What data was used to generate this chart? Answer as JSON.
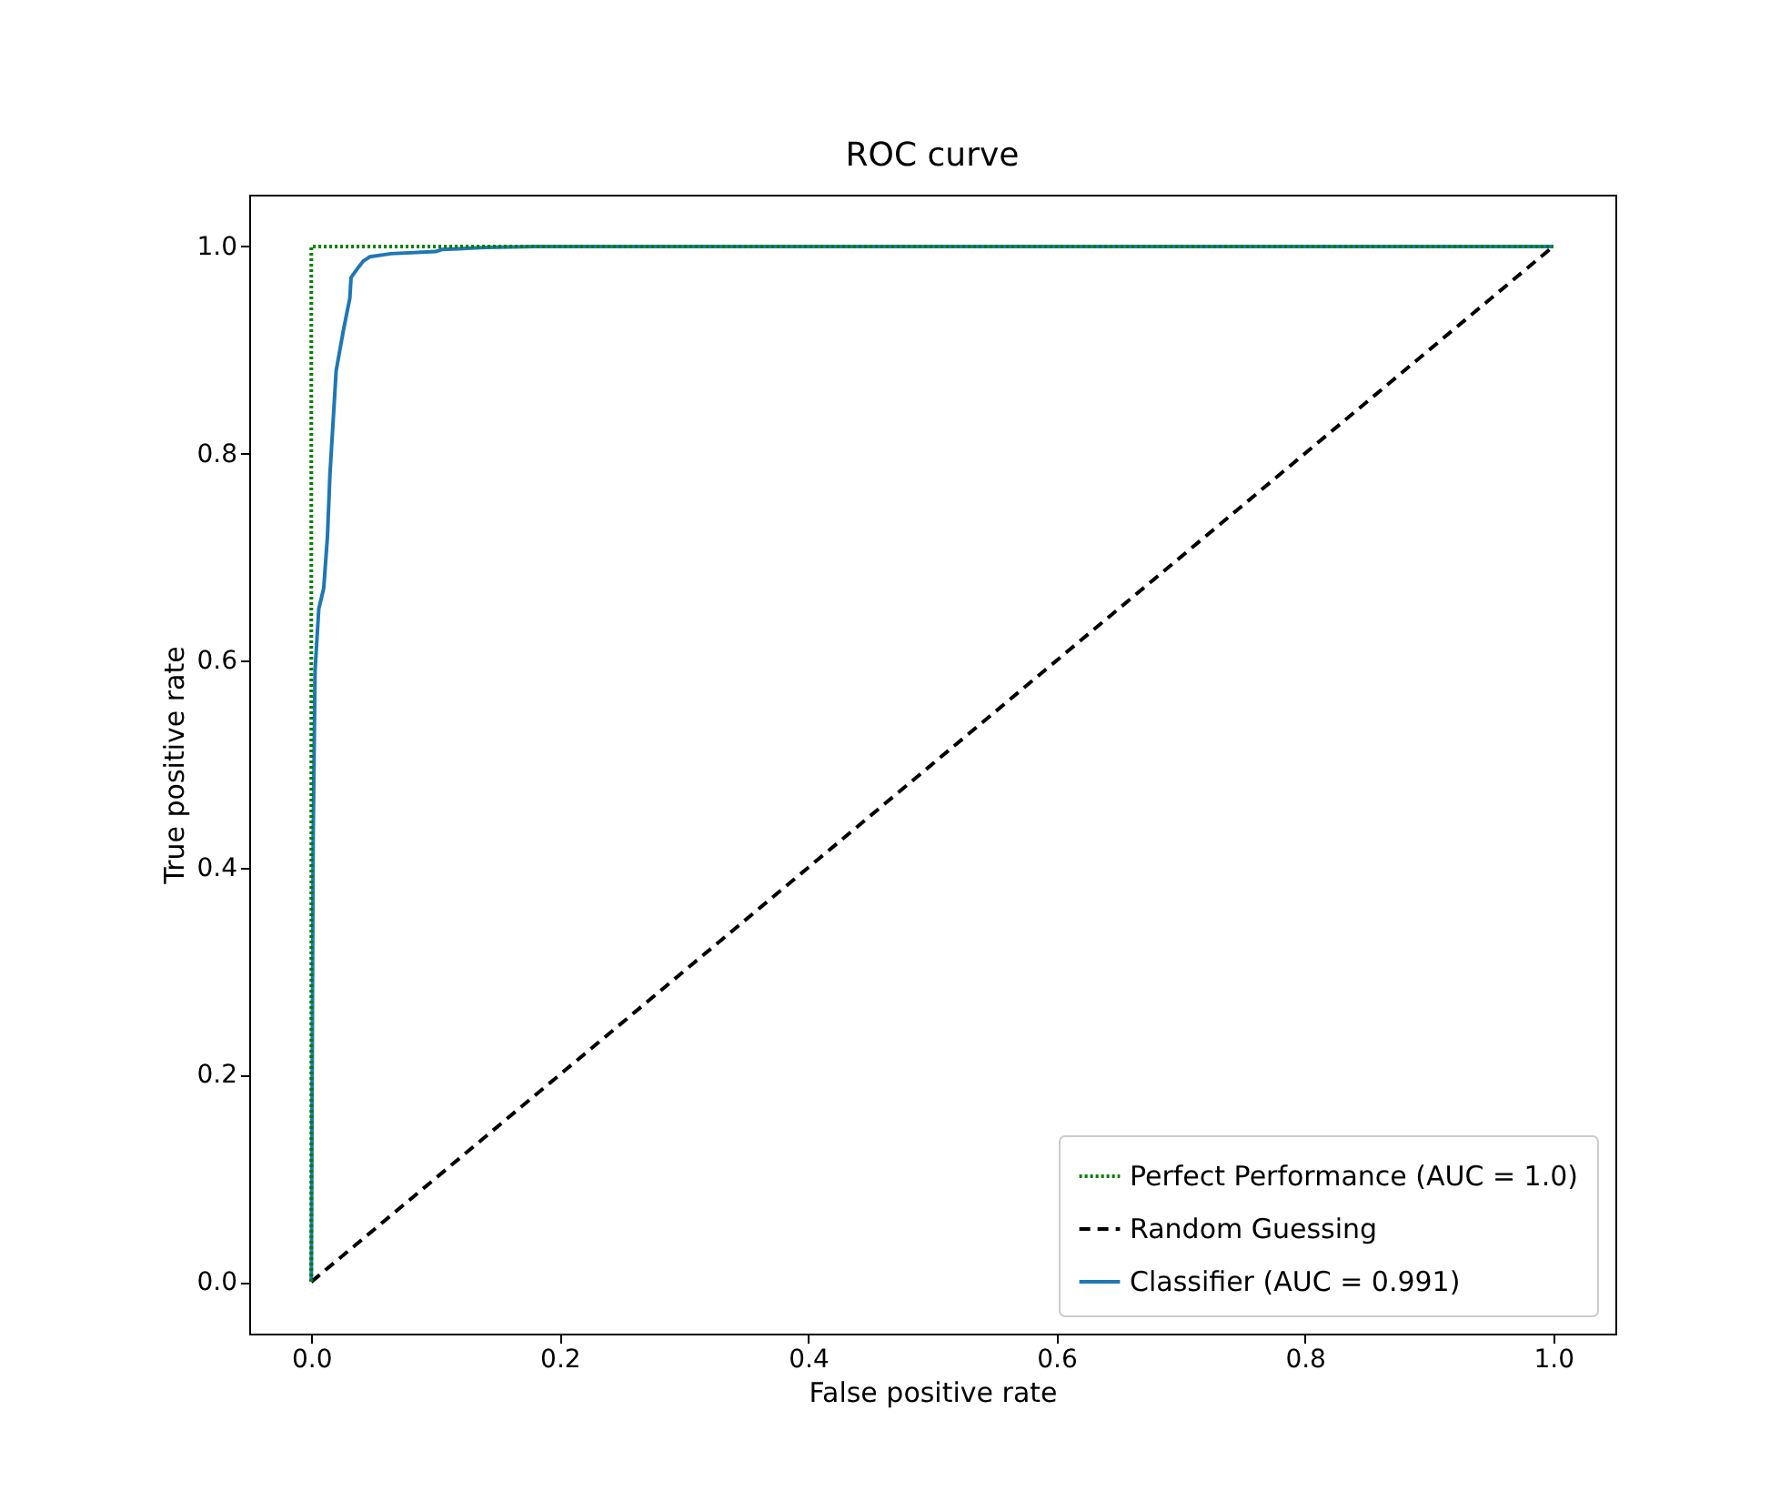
{
  "chart_data": {
    "type": "line",
    "title": "ROC curve",
    "xlabel": "False positive rate",
    "ylabel": "True positive rate",
    "xlim": [
      -0.05,
      1.05
    ],
    "ylim": [
      -0.05,
      1.05
    ],
    "xticks": [
      {
        "value": 0,
        "label": "0.0"
      },
      {
        "value": 0.2,
        "label": "0.2"
      },
      {
        "value": 0.4,
        "label": "0.4"
      },
      {
        "value": 0.6,
        "label": "0.6"
      },
      {
        "value": 0.8,
        "label": "0.8"
      },
      {
        "value": 1,
        "label": "1.0"
      }
    ],
    "yticks": [
      {
        "value": 0,
        "label": "0.0"
      },
      {
        "value": 0.2,
        "label": "0.2"
      },
      {
        "value": 0.4,
        "label": "0.4"
      },
      {
        "value": 0.6,
        "label": "0.6"
      },
      {
        "value": 0.8,
        "label": "0.8"
      },
      {
        "value": 1,
        "label": "1.0"
      }
    ],
    "grid": false,
    "legend": "bottom right",
    "series": [
      {
        "name": "Perfect Performance (AUC = 1.0)",
        "color": "#008000",
        "line_style": "dotted",
        "x": [
          0,
          0,
          1
        ],
        "values": [
          0,
          1,
          1
        ]
      },
      {
        "name": "Random Guessing",
        "color": "#000000",
        "line_style": "dashed",
        "x": [
          0,
          1
        ],
        "values": [
          0,
          1
        ]
      },
      {
        "name": "Classifier (AUC = 0.991)",
        "color": "#1f77b4",
        "line_style": "solid",
        "x": [
          0,
          0.0015,
          0.003,
          0.006,
          0.01,
          0.013,
          0.015,
          0.018,
          0.02,
          0.023,
          0.026,
          0.031,
          0.032,
          0.038,
          0.042,
          0.047,
          0.064,
          0.1,
          0.105,
          0.14,
          0.18,
          1
        ],
        "values": [
          0,
          0.43,
          0.59,
          0.65,
          0.67,
          0.72,
          0.78,
          0.84,
          0.88,
          0.9,
          0.92,
          0.95,
          0.97,
          0.98,
          0.986,
          0.99,
          0.993,
          0.995,
          0.997,
          0.999,
          1,
          1
        ]
      }
    ]
  }
}
